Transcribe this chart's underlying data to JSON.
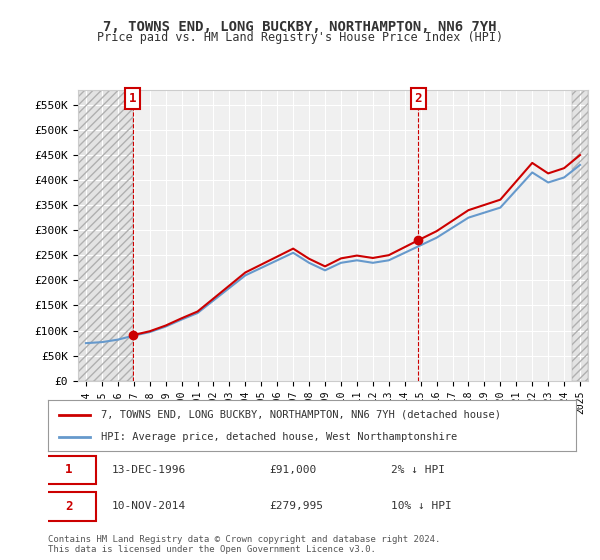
{
  "title": "7, TOWNS END, LONG BUCKBY, NORTHAMPTON, NN6 7YH",
  "subtitle": "Price paid vs. HM Land Registry's House Price Index (HPI)",
  "background_color": "#ffffff",
  "plot_bg_color": "#f0f0f0",
  "grid_color": "#ffffff",
  "hatch_color": "#d0d0d0",
  "ylabel_ticks": [
    "£0",
    "£50K",
    "£100K",
    "£150K",
    "£200K",
    "£250K",
    "£300K",
    "£350K",
    "£400K",
    "£450K",
    "£500K",
    "£550K"
  ],
  "ytick_vals": [
    0,
    50000,
    100000,
    150000,
    200000,
    250000,
    300000,
    350000,
    400000,
    450000,
    500000,
    550000
  ],
  "ylim": [
    0,
    580000
  ],
  "xlim_start": 1993.5,
  "xlim_end": 2025.5,
  "xticks": [
    1994,
    1995,
    1996,
    1997,
    1998,
    1999,
    2000,
    2001,
    2002,
    2003,
    2004,
    2005,
    2006,
    2007,
    2008,
    2009,
    2010,
    2011,
    2012,
    2013,
    2014,
    2015,
    2016,
    2017,
    2018,
    2019,
    2020,
    2021,
    2022,
    2023,
    2024,
    2025
  ],
  "sale1_x": 1996.95,
  "sale1_y": 91000,
  "sale1_label": "1",
  "sale2_x": 2014.85,
  "sale2_y": 279995,
  "sale2_label": "2",
  "vline1_x": 1996.95,
  "vline2_x": 2014.85,
  "red_line_color": "#cc0000",
  "blue_line_color": "#6699cc",
  "hpi_line": {
    "years": [
      1994,
      1995,
      1996,
      1997,
      1998,
      1999,
      2000,
      2001,
      2002,
      2003,
      2004,
      2005,
      2006,
      2007,
      2008,
      2009,
      2010,
      2011,
      2012,
      2013,
      2014,
      2015,
      2016,
      2017,
      2018,
      2019,
      2020,
      2021,
      2022,
      2023,
      2024,
      2025
    ],
    "values": [
      75000,
      77000,
      82000,
      90000,
      97000,
      108000,
      122000,
      135000,
      160000,
      185000,
      210000,
      225000,
      240000,
      255000,
      235000,
      220000,
      235000,
      240000,
      235000,
      240000,
      255000,
      270000,
      285000,
      305000,
      325000,
      335000,
      345000,
      380000,
      415000,
      395000,
      405000,
      430000
    ]
  },
  "price_paid_line": {
    "years": [
      1996.95,
      2014.85
    ],
    "values": [
      91000,
      279995
    ]
  },
  "legend_entry1": "7, TOWNS END, LONG BUCKBY, NORTHAMPTON, NN6 7YH (detached house)",
  "legend_entry2": "HPI: Average price, detached house, West Northamptonshire",
  "annotation1_date": "13-DEC-1996",
  "annotation1_price": "£91,000",
  "annotation1_hpi": "2% ↓ HPI",
  "annotation2_date": "10-NOV-2014",
  "annotation2_price": "£279,995",
  "annotation2_hpi": "10% ↓ HPI",
  "footer": "Contains HM Land Registry data © Crown copyright and database right 2024.\nThis data is licensed under the Open Government Licence v3.0.",
  "marker_box_color": "#cc0000"
}
